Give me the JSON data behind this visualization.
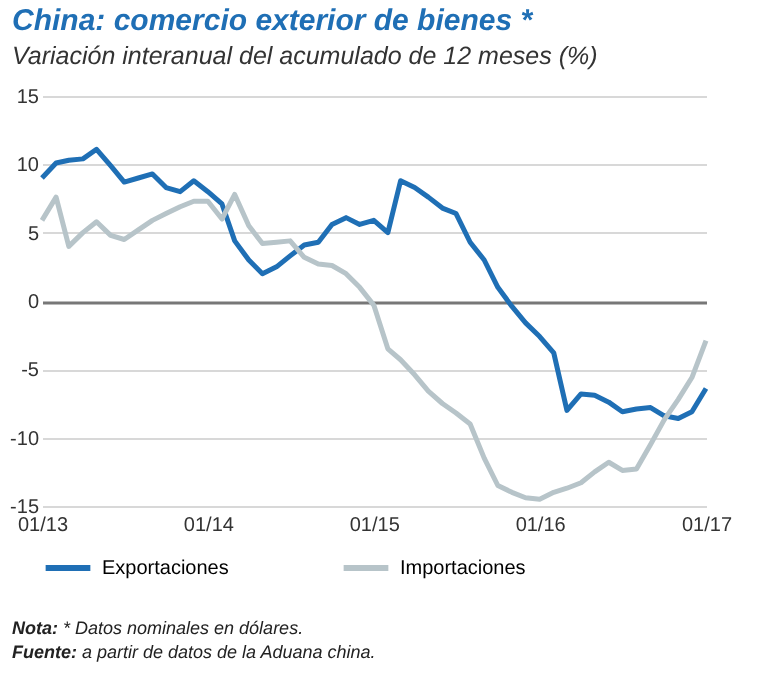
{
  "chart_data": {
    "type": "line",
    "title": "China: comercio exterior de bienes *",
    "subtitle": "Variación interanual del acumulado de 12 meses (%)",
    "x": [
      "2013-01",
      "2013-02",
      "2013-03",
      "2013-04",
      "2013-05",
      "2013-06",
      "2013-07",
      "2013-08",
      "2013-09",
      "2013-10",
      "2013-11",
      "2013-12",
      "2014-01",
      "2014-02",
      "2014-03",
      "2014-04",
      "2014-05",
      "2014-06",
      "2014-07",
      "2014-08",
      "2014-09",
      "2014-10",
      "2014-11",
      "2014-12",
      "2015-01",
      "2015-02",
      "2015-03",
      "2015-04",
      "2015-05",
      "2015-06",
      "2015-07",
      "2015-08",
      "2015-09",
      "2015-10",
      "2015-11",
      "2015-12",
      "2016-01",
      "2016-02",
      "2016-03",
      "2016-04",
      "2016-05",
      "2016-06",
      "2016-07",
      "2016-08",
      "2016-09",
      "2016-10",
      "2016-11",
      "2016-12",
      "2017-01"
    ],
    "series": [
      {
        "name": "Exportaciones",
        "color": "#1f6fb5",
        "values": [
          9.0,
          10.1,
          10.3,
          10.4,
          11.1,
          9.9,
          8.7,
          9.0,
          9.3,
          8.3,
          8.0,
          8.8,
          8.0,
          7.1,
          4.4,
          3.0,
          2.0,
          2.5,
          3.3,
          4.1,
          4.3,
          5.6,
          6.1,
          5.6,
          5.9,
          5.0,
          8.8,
          8.3,
          7.6,
          6.8,
          6.4,
          4.3,
          3.0,
          1.0,
          -0.4,
          -1.6,
          -2.6,
          -3.8,
          -8.0,
          -6.8,
          -6.9,
          -7.4,
          -8.1,
          -7.9,
          -7.8,
          -8.4,
          -8.6,
          -8.1,
          -6.4
        ]
      },
      {
        "name": "Importaciones",
        "color": "#b7c4c9",
        "values": [
          5.9,
          7.6,
          4.0,
          5.0,
          5.8,
          4.8,
          4.5,
          5.2,
          5.9,
          6.4,
          6.9,
          7.3,
          7.3,
          6.0,
          7.8,
          5.5,
          4.2,
          4.3,
          4.4,
          3.2,
          2.7,
          2.6,
          2.0,
          1.0,
          -0.3,
          -3.5,
          -4.3,
          -5.4,
          -6.6,
          -7.5,
          -8.2,
          -9.0,
          -11.5,
          -13.5,
          -14.0,
          -14.4,
          -14.5,
          -14.0,
          -13.7,
          -13.3,
          -12.5,
          -11.8,
          -12.4,
          -12.3,
          -10.5,
          -8.7,
          -7.2,
          -5.6,
          -2.9
        ]
      }
    ],
    "xlim": [
      "2013-01",
      "2017-01"
    ],
    "xticks": [
      {
        "value": "2013-01",
        "label": "01/13"
      },
      {
        "value": "2014-01",
        "label": "01/14"
      },
      {
        "value": "2015-01",
        "label": "01/15"
      },
      {
        "value": "2016-01",
        "label": "01/16"
      },
      {
        "value": "2017-01",
        "label": "01/17"
      }
    ],
    "ylim": [
      -15,
      15
    ],
    "yticks": [
      -15,
      -10,
      -5,
      0,
      5,
      10,
      15
    ],
    "grid": "y",
    "legend": "bottom",
    "annotations": [
      "Nota: * Datos nominales en dólares.",
      "Fuente: a partir de datos de la Aduana china."
    ]
  }
}
